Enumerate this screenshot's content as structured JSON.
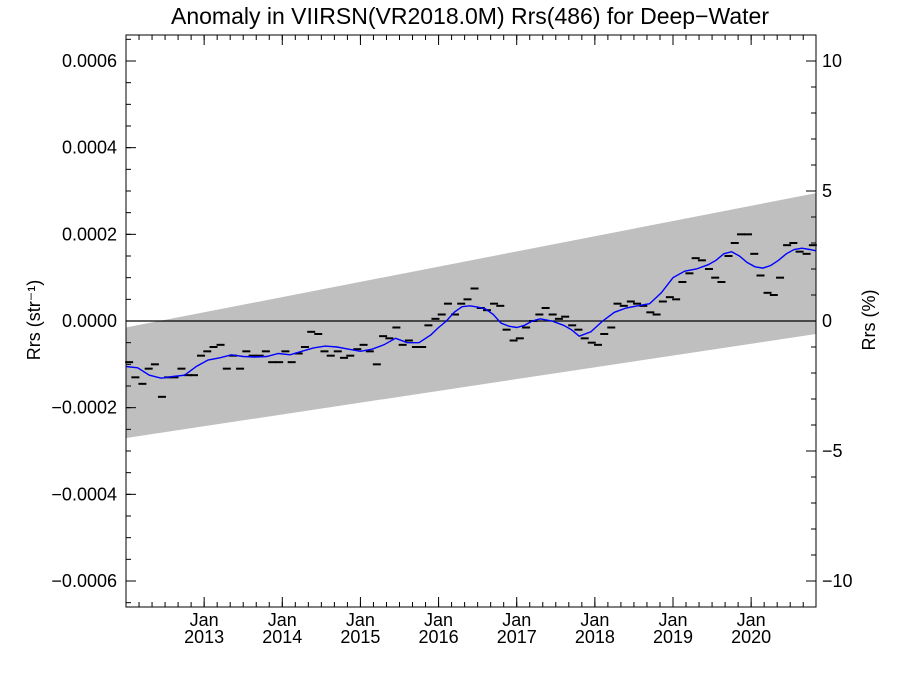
{
  "chart_data": {
    "type": "scatter",
    "title": "Anomaly in VIIRSN(VR2018.0M) Rrs(486) for Deep−Water",
    "ylabel_left": "Rrs (str⁻¹)",
    "ylabel_right": "Rrs (%)",
    "xlim": [
      2012.0,
      2020.83
    ],
    "ylim": [
      -0.00066,
      0.00066
    ],
    "ylim_right": [
      -11.0,
      11.0
    ],
    "grid": false,
    "zero_line": true,
    "y_ticks": [
      {
        "value": 0.0006,
        "label": "0.0006"
      },
      {
        "value": 0.0004,
        "label": "0.0004"
      },
      {
        "value": 0.0002,
        "label": "0.0002"
      },
      {
        "value": 0.0,
        "label": "0.0000"
      },
      {
        "value": -0.0002,
        "label": "−0.0002"
      },
      {
        "value": -0.0004,
        "label": "−0.0004"
      },
      {
        "value": -0.0006,
        "label": "−0.0006"
      }
    ],
    "y_right_ticks": [
      {
        "value": 10,
        "label": "10"
      },
      {
        "value": 5,
        "label": "5"
      },
      {
        "value": 0,
        "label": "0"
      },
      {
        "value": -5,
        "label": "−5"
      },
      {
        "value": -10,
        "label": "−10"
      }
    ],
    "x_ticks": [
      {
        "value": 2013.0,
        "month": "Jan",
        "year": "2013"
      },
      {
        "value": 2014.0,
        "month": "Jan",
        "year": "2014"
      },
      {
        "value": 2015.0,
        "month": "Jan",
        "year": "2015"
      },
      {
        "value": 2016.0,
        "month": "Jan",
        "year": "2016"
      },
      {
        "value": 2017.0,
        "month": "Jan",
        "year": "2017"
      },
      {
        "value": 2018.0,
        "month": "Jan",
        "year": "2018"
      },
      {
        "value": 2019.0,
        "month": "Jan",
        "year": "2019"
      },
      {
        "value": 2020.0,
        "month": "Jan",
        "year": "2020"
      }
    ],
    "band": {
      "x": [
        2012.0,
        2020.83
      ],
      "upper": [
        -1.5e-05,
        0.000295
      ],
      "lower": [
        -0.00027,
        -3e-05
      ],
      "color": "#bfbfbf"
    },
    "series": [
      {
        "kind": "points",
        "color": "#000000",
        "x": [
          2012.04,
          2012.12,
          2012.21,
          2012.29,
          2012.37,
          2012.46,
          2012.54,
          2012.62,
          2012.71,
          2012.79,
          2012.87,
          2012.96,
          2013.04,
          2013.12,
          2013.21,
          2013.29,
          2013.37,
          2013.46,
          2013.54,
          2013.62,
          2013.71,
          2013.79,
          2013.87,
          2013.96,
          2014.04,
          2014.12,
          2014.21,
          2014.29,
          2014.37,
          2014.46,
          2014.54,
          2014.62,
          2014.71,
          2014.79,
          2014.87,
          2014.96,
          2015.04,
          2015.12,
          2015.21,
          2015.29,
          2015.37,
          2015.46,
          2015.54,
          2015.62,
          2015.71,
          2015.79,
          2015.87,
          2015.96,
          2016.04,
          2016.12,
          2016.21,
          2016.29,
          2016.37,
          2016.46,
          2016.54,
          2016.62,
          2016.71,
          2016.79,
          2016.87,
          2016.96,
          2017.04,
          2017.12,
          2017.21,
          2017.29,
          2017.37,
          2017.46,
          2017.54,
          2017.62,
          2017.71,
          2017.79,
          2017.87,
          2017.96,
          2018.04,
          2018.12,
          2018.21,
          2018.29,
          2018.37,
          2018.46,
          2018.54,
          2018.62,
          2018.71,
          2018.79,
          2018.87,
          2018.96,
          2019.04,
          2019.12,
          2019.21,
          2019.29,
          2019.37,
          2019.46,
          2019.54,
          2019.62,
          2019.71,
          2019.79,
          2019.87,
          2019.96,
          2020.04,
          2020.12,
          2020.21,
          2020.29,
          2020.37,
          2020.46,
          2020.54,
          2020.62,
          2020.71,
          2020.79
        ],
        "y": [
          -9.5e-05,
          -0.00013,
          -0.000145,
          -0.00011,
          -0.0001,
          -0.000175,
          -0.00013,
          -0.00013,
          -0.00011,
          -0.000125,
          -0.000125,
          -8e-05,
          -7e-05,
          -6e-05,
          -5.5e-05,
          -0.00011,
          -8e-05,
          -0.00011,
          -7e-05,
          -8e-05,
          -8e-05,
          -7e-05,
          -9.5e-05,
          -9.5e-05,
          -7e-05,
          -9.5e-05,
          -7.5e-05,
          -6e-05,
          -2.5e-05,
          -3e-05,
          -7e-05,
          -8e-05,
          -7e-05,
          -8.5e-05,
          -8e-05,
          -6.5e-05,
          -5.5e-05,
          -7e-05,
          -0.0001,
          -3.5e-05,
          -4e-05,
          -1.5e-05,
          -5.5e-05,
          -4.5e-05,
          -6e-05,
          -6e-05,
          -1e-05,
          5e-06,
          1.5e-05,
          4e-05,
          1.5e-05,
          4e-05,
          5e-05,
          7.5e-05,
          3e-05,
          2.5e-05,
          4e-05,
          3.5e-05,
          -2e-05,
          -4.5e-05,
          -4e-05,
          -1.5e-05,
          0.0,
          1.5e-05,
          3e-05,
          1.5e-05,
          5e-06,
          1e-05,
          -1e-05,
          -2e-05,
          -4e-05,
          -5e-05,
          -5.5e-05,
          -3e-05,
          -1.5e-05,
          4e-05,
          3.5e-05,
          4.5e-05,
          4e-05,
          3.5e-05,
          2e-05,
          1.5e-05,
          4.5e-05,
          5.5e-05,
          5e-05,
          9e-05,
          0.00011,
          0.000145,
          0.00014,
          0.00012,
          0.0001,
          9e-05,
          0.00015,
          0.00018,
          0.0002,
          0.0002,
          0.000155,
          0.000105,
          6.5e-05,
          6e-05,
          0.0001,
          0.000175,
          0.00018,
          0.00016,
          0.000155,
          0.000175
        ]
      },
      {
        "kind": "line",
        "color": "#0000ff",
        "x": [
          2012.0,
          2012.15,
          2012.3,
          2012.45,
          2012.6,
          2012.75,
          2012.9,
          2013.05,
          2013.2,
          2013.35,
          2013.5,
          2013.65,
          2013.8,
          2013.95,
          2014.1,
          2014.25,
          2014.4,
          2014.55,
          2014.7,
          2014.85,
          2015.0,
          2015.15,
          2015.3,
          2015.45,
          2015.6,
          2015.75,
          2015.9,
          2016.0,
          2016.1,
          2016.2,
          2016.3,
          2016.4,
          2016.5,
          2016.6,
          2016.7,
          2016.8,
          2016.9,
          2017.0,
          2017.1,
          2017.2,
          2017.3,
          2017.45,
          2017.6,
          2017.7,
          2017.8,
          2017.95,
          2018.1,
          2018.25,
          2018.4,
          2018.55,
          2018.7,
          2018.85,
          2019.0,
          2019.15,
          2019.3,
          2019.45,
          2019.55,
          2019.65,
          2019.75,
          2019.85,
          2019.95,
          2020.05,
          2020.15,
          2020.25,
          2020.35,
          2020.45,
          2020.55,
          2020.65,
          2020.75,
          2020.83
        ],
        "y": [
          -0.000105,
          -0.000108,
          -0.000125,
          -0.000132,
          -0.000128,
          -0.000125,
          -0.000105,
          -9e-05,
          -8.5e-05,
          -7.8e-05,
          -8.2e-05,
          -8.3e-05,
          -8.2e-05,
          -7.5e-05,
          -7.8e-05,
          -7e-05,
          -6.2e-05,
          -5.8e-05,
          -6e-05,
          -6.5e-05,
          -7e-05,
          -6.5e-05,
          -5.5e-05,
          -4e-05,
          -5e-05,
          -5e-05,
          -3.2e-05,
          -1.5e-05,
          0.0,
          2e-05,
          3.3e-05,
          3.5e-05,
          3.2e-05,
          2.8e-05,
          1.5e-05,
          -5e-06,
          -1.2e-05,
          -1.5e-05,
          -1e-05,
          0.0,
          5e-06,
          0.0,
          -1e-05,
          -2e-05,
          -3.5e-05,
          -2.5e-05,
          0.0,
          2e-05,
          3e-05,
          3.5e-05,
          4e-05,
          6.5e-05,
          0.0001,
          0.000115,
          0.00012,
          0.00013,
          0.00014,
          0.000155,
          0.00016,
          0.00015,
          0.000135,
          0.000125,
          0.000122,
          0.000128,
          0.00014,
          0.000155,
          0.000165,
          0.000168,
          0.000165,
          0.000162
        ]
      }
    ]
  }
}
